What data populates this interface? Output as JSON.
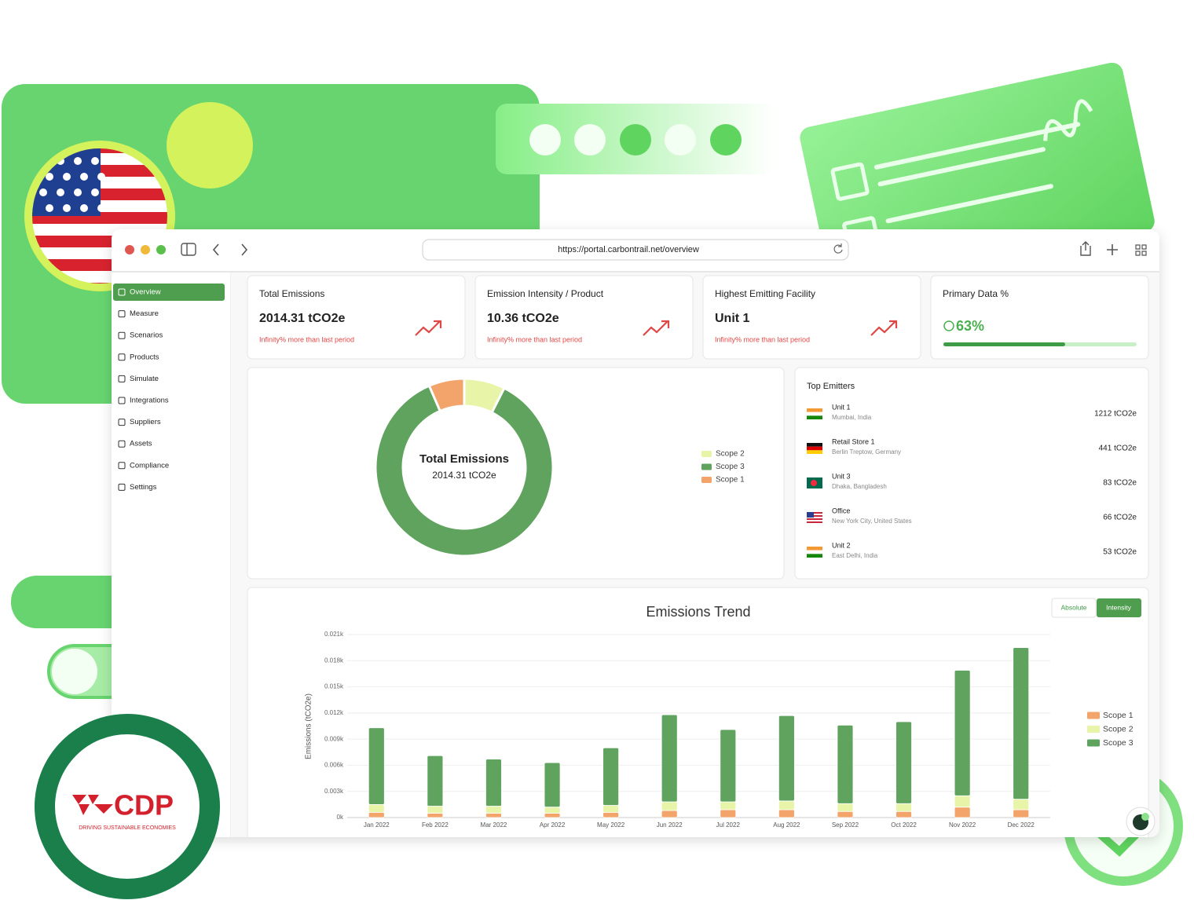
{
  "browser": {
    "url": "https://portal.carbontrail.net/overview"
  },
  "sidebar": {
    "items": [
      "Overview",
      "Measure",
      "Scenarios",
      "Products",
      "Simulate",
      "Integrations",
      "Suppliers",
      "Assets",
      "Compliance",
      "Settings"
    ]
  },
  "kpis": [
    {
      "title": "Total Emissions",
      "value": "2014.31 tCO2e",
      "note": "Infinity% more than last period"
    },
    {
      "title": "Emission Intensity / Product",
      "value": "10.36 tCO2e",
      "note": "Infinity% more than last period"
    },
    {
      "title": "Highest Emitting Facility",
      "value": "Unit 1",
      "note": "Infinity% more than last period"
    },
    {
      "title": "Primary Data %",
      "value": 63,
      "value_label": "63%"
    }
  ],
  "top_emitters": {
    "title": "Top Emitters",
    "rows": [
      {
        "name": "Unit 1",
        "location": "Mumbai, India",
        "emissions": "1212 tCO2e"
      },
      {
        "name": "Retail Store 1",
        "location": "Berlin Treptow, Germany",
        "emissions": "441 tCO2e"
      },
      {
        "name": "Unit 3",
        "location": "Dhaka, Bangladesh",
        "emissions": "83 tCO2e"
      },
      {
        "name": "Office",
        "location": "New York City, United States",
        "emissions": "66 tCO2e"
      },
      {
        "name": "Unit 2",
        "location": "East Delhi, India",
        "emissions": "53 tCO2e"
      }
    ]
  },
  "chart_data": [
    {
      "type": "donut",
      "title": "Total Emissions",
      "subtitle": "2014.31 tCO2e",
      "categories": [
        "Scope 2",
        "Scope 3",
        "Scope 1"
      ],
      "values": [
        150,
        1734,
        130
      ],
      "colors": [
        "#e8f5a8",
        "#5fa35f",
        "#f2a46a"
      ],
      "legend": "right"
    },
    {
      "type": "bar",
      "stacked": true,
      "title": "Emissions Trend",
      "y_label": "Emissions (tCO2e)",
      "toggle": [
        "Absolute",
        "Intensity"
      ],
      "categories": [
        "Jan 2022",
        "Feb 2022",
        "Mar 2022",
        "Apr 2022",
        "May 2022",
        "Jun 2022",
        "Jul 2022",
        "Aug 2022",
        "Sep 2022",
        "Oct 2022",
        "Nov 2022",
        "Dec 2022"
      ],
      "series": [
        {
          "name": "Scope 1",
          "color": "#f2a46a",
          "values": [
            0.0006,
            0.0005,
            0.0005,
            0.0005,
            0.0006,
            0.0008,
            0.0009,
            0.0009,
            0.0007,
            0.0007,
            0.0012,
            0.0009
          ]
        },
        {
          "name": "Scope 2",
          "color": "#e8f5a8",
          "values": [
            0.0009,
            0.0008,
            0.0008,
            0.0007,
            0.0008,
            0.001,
            0.0009,
            0.001,
            0.0009,
            0.0009,
            0.0013,
            0.0012
          ]
        },
        {
          "name": "Scope 3",
          "color": "#5fa35f",
          "values": [
            0.0088,
            0.0058,
            0.0054,
            0.0051,
            0.0066,
            0.01,
            0.0083,
            0.0098,
            0.009,
            0.0094,
            0.0144,
            0.0174
          ]
        }
      ],
      "ylim": [
        0,
        0.021
      ],
      "yticks": [
        {
          "value": 0,
          "label": "0k"
        },
        {
          "value": 0.003,
          "label": "0.003k"
        },
        {
          "value": 0.006,
          "label": "0.006k"
        },
        {
          "value": 0.009,
          "label": "0.009k"
        },
        {
          "value": 0.012,
          "label": "0.012k"
        },
        {
          "value": 0.015,
          "label": "0.015k"
        },
        {
          "value": 0.018,
          "label": "0.018k"
        },
        {
          "value": 0.021,
          "label": "0.021k"
        }
      ],
      "grid": true,
      "legend": "right"
    }
  ],
  "badges": {
    "cdp": "CDP",
    "cdp_tagline": "DRIVING SUSTAINABLE ECONOMIES"
  }
}
